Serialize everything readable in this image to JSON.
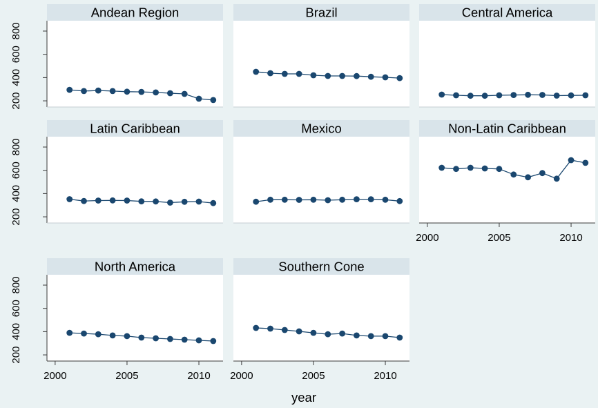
{
  "chart_data": {
    "type": "line",
    "xlabel": "year",
    "ylabel": "",
    "x": [
      2001,
      2002,
      2003,
      2004,
      2005,
      2006,
      2007,
      2008,
      2009,
      2010,
      2011
    ],
    "xticks": [
      2000,
      2005,
      2010
    ],
    "yticks": [
      200,
      400,
      600,
      800
    ],
    "xlim": [
      1999.43,
      2011.68
    ],
    "ylim": [
      147,
      889
    ],
    "grid": false,
    "marker": "circle",
    "panels": [
      {
        "title": "Andean Region",
        "values": [
          295,
          284,
          289,
          284,
          279,
          277,
          272,
          266,
          260,
          218,
          207
        ]
      },
      {
        "title": "Brazil",
        "values": [
          450,
          438,
          432,
          432,
          420,
          414,
          414,
          413,
          407,
          402,
          396
        ]
      },
      {
        "title": "Central America",
        "values": [
          254,
          248,
          244,
          244,
          248,
          250,
          252,
          251,
          245,
          247,
          248
        ]
      },
      {
        "title": "Latin Caribbean",
        "values": [
          352,
          336,
          340,
          341,
          340,
          333,
          332,
          322,
          329,
          331,
          318
        ]
      },
      {
        "title": "Mexico",
        "values": [
          330,
          347,
          347,
          346,
          347,
          343,
          347,
          351,
          351,
          347,
          335
        ]
      },
      {
        "title": "Non-Latin Caribbean",
        "values": [
          622,
          612,
          622,
          616,
          612,
          564,
          540,
          576,
          528,
          687,
          664
        ]
      },
      {
        "title": "North America",
        "values": [
          390,
          384,
          378,
          367,
          361,
          349,
          343,
          337,
          331,
          325,
          319
        ]
      },
      {
        "title": "Southern Cone",
        "values": [
          432,
          426,
          414,
          402,
          390,
          378,
          384,
          367,
          361,
          361,
          349
        ]
      }
    ]
  },
  "colors": {
    "background": "#eaf2f3",
    "panel_header": "#d9e4ea",
    "plot_area": "#ffffff",
    "series": "#1a476f",
    "axis": "#3a3a3a",
    "panel_edge": "#c4ced3"
  }
}
